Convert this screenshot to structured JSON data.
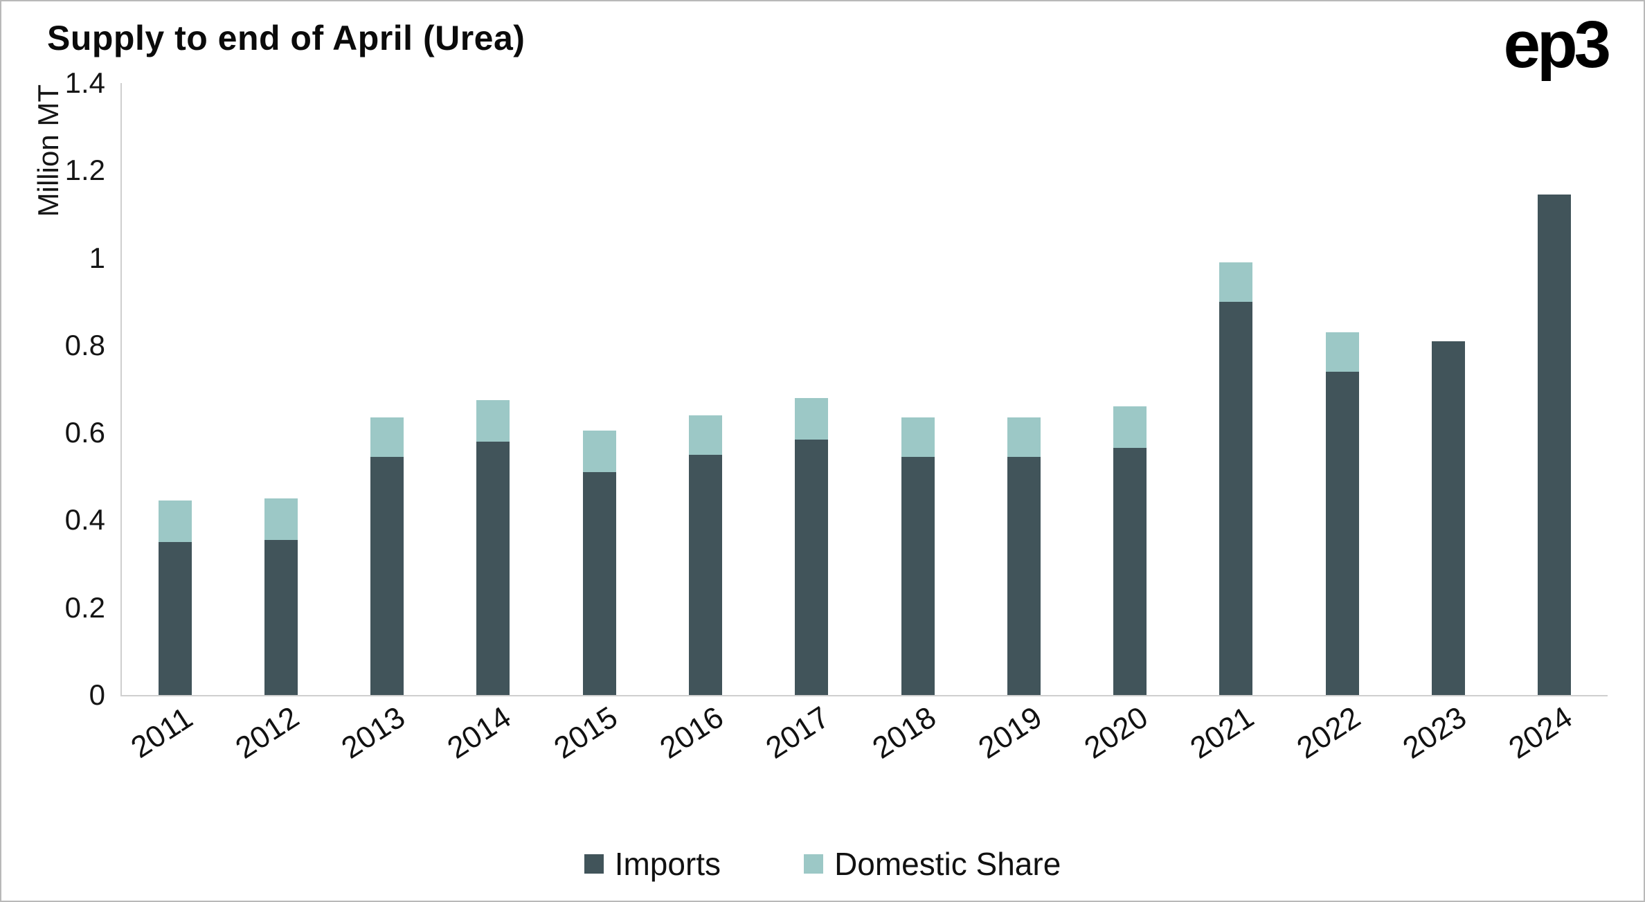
{
  "branding": {
    "logo": "ep3"
  },
  "chart_data": {
    "type": "bar",
    "stacked": true,
    "title": "Supply to end of April (Urea)",
    "xlabel": "",
    "ylabel": "Million MT",
    "ylim": [
      0,
      1.4
    ],
    "yticks": [
      0,
      0.2,
      0.4,
      0.6,
      0.8,
      1,
      1.2,
      1.4
    ],
    "grid": false,
    "legend_position": "bottom",
    "categories": [
      "2011",
      "2012",
      "2013",
      "2014",
      "2015",
      "2016",
      "2017",
      "2018",
      "2019",
      "2020",
      "2021",
      "2022",
      "2023",
      "2024"
    ],
    "series": [
      {
        "name": "Imports",
        "color": "#41545a",
        "values": [
          0.35,
          0.355,
          0.545,
          0.58,
          0.51,
          0.55,
          0.585,
          0.545,
          0.545,
          0.565,
          0.9,
          0.74,
          0.81,
          1.145
        ]
      },
      {
        "name": "Domestic Share",
        "color": "#9cc8c6",
        "values": [
          0.095,
          0.095,
          0.09,
          0.095,
          0.095,
          0.09,
          0.095,
          0.09,
          0.09,
          0.095,
          0.09,
          0.09,
          0,
          0
        ]
      }
    ]
  }
}
